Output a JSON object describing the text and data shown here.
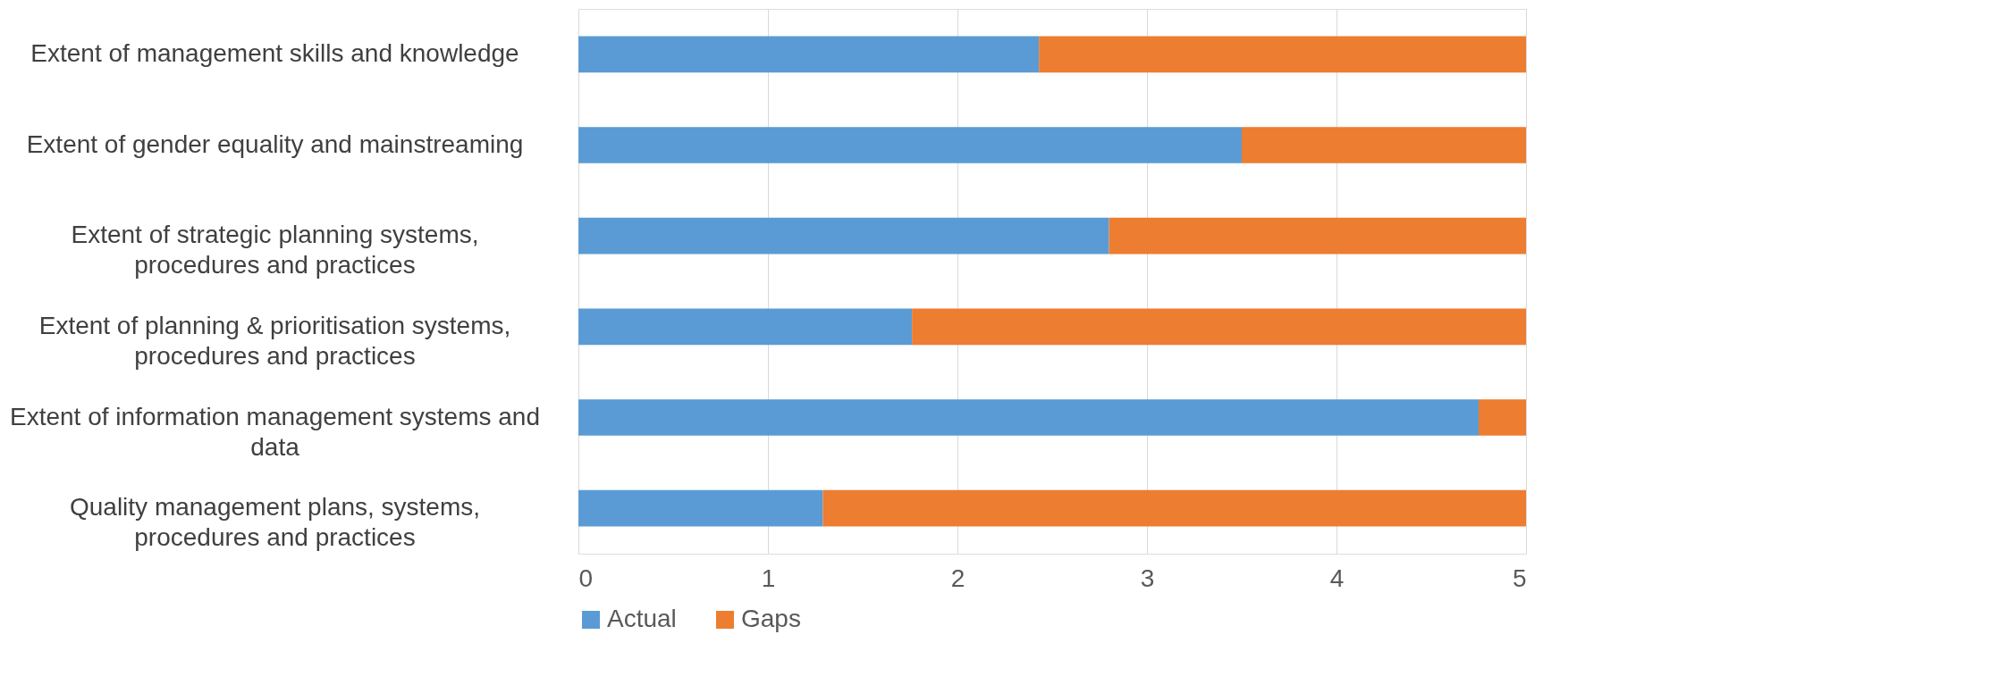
{
  "chart_data": {
    "type": "bar",
    "orientation": "horizontal",
    "stacked": true,
    "categories": [
      "Extent of management skills and knowledge",
      "Extent of gender equality and mainstreaming",
      "Extent of strategic planning systems, procedures and practices",
      "Extent of planning & prioritisation systems, procedures and practices",
      "Extent of information management systems and data",
      "Quality management plans, systems, procedures and practices"
    ],
    "series": [
      {
        "name": "Actual",
        "color": "#5b9bd5",
        "values": [
          2.43,
          3.5,
          2.8,
          1.76,
          4.75,
          1.29
        ]
      },
      {
        "name": "Gaps",
        "color": "#ed7d31",
        "values": [
          2.57,
          1.5,
          2.2,
          3.24,
          0.25,
          3.71
        ]
      }
    ],
    "xlim": [
      0,
      5
    ],
    "xticks": [
      0,
      1,
      2,
      3,
      4,
      5
    ],
    "grid": "x",
    "legend": "bottom"
  }
}
